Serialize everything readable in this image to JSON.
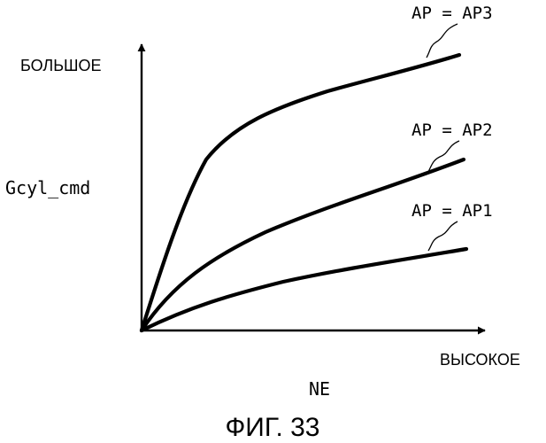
{
  "figure": {
    "caption": "ФИГ. 33"
  },
  "chart_data": {
    "type": "line",
    "title": "",
    "ylabel": "Gcyl_cmd",
    "y_axis_marker": "БОЛЬШОЕ",
    "xlabel": "NE",
    "x_axis_marker": "ВЫСОКОЕ",
    "axis_values": "qualitative (no numeric ticks)",
    "grid": false,
    "series": [
      {
        "name": "AP = AP3"
      },
      {
        "name": "AP = AP2"
      },
      {
        "name": "AP = AP1"
      }
    ]
  }
}
